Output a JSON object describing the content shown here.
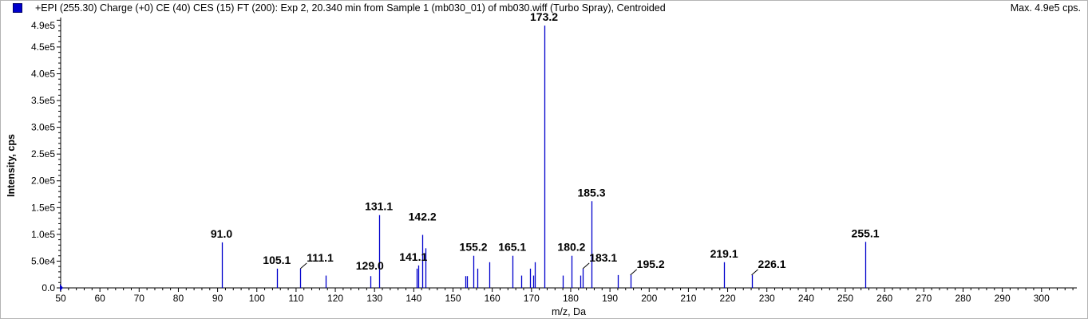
{
  "header": {
    "title": "+EPI (255.30) Charge (+0) CE (40) CES (15) FT (200): Exp 2, 20.340 min from Sample 1 (mb030_01) of mb030.wiff (Turbo Spray), Centroided",
    "max_label": "Max. 4.9e5 cps.",
    "series_color": "#0000cc"
  },
  "chart_data": {
    "type": "bar",
    "xlabel": "m/z, Da",
    "ylabel": "Intensity, cps",
    "xlim": [
      50,
      309
    ],
    "ylim": [
      0,
      500000
    ],
    "x_ticks": [
      50,
      60,
      70,
      80,
      90,
      100,
      110,
      120,
      130,
      140,
      150,
      160,
      170,
      180,
      190,
      200,
      210,
      220,
      230,
      240,
      250,
      260,
      270,
      280,
      290,
      300
    ],
    "y_ticks": [
      {
        "value": 0,
        "label": "0.0"
      },
      {
        "value": 50000,
        "label": "5.0e4"
      },
      {
        "value": 100000,
        "label": "1.0e5"
      },
      {
        "value": 150000,
        "label": "1.5e5"
      },
      {
        "value": 200000,
        "label": "2.0e5"
      },
      {
        "value": 250000,
        "label": "2.5e5"
      },
      {
        "value": 300000,
        "label": "3.0e5"
      },
      {
        "value": 350000,
        "label": "3.5e5"
      },
      {
        "value": 400000,
        "label": "4.0e5"
      },
      {
        "value": 450000,
        "label": "4.5e5"
      },
      {
        "value": 490000,
        "label": "4.9e5"
      }
    ],
    "peaks": [
      {
        "mz": 91.0,
        "intensity": 85000
      },
      {
        "mz": 105.1,
        "intensity": 36000
      },
      {
        "mz": 111.1,
        "intensity": 36000
      },
      {
        "mz": 117.5,
        "intensity": 23000
      },
      {
        "mz": 129.0,
        "intensity": 22000
      },
      {
        "mz": 131.1,
        "intensity": 136000
      },
      {
        "mz": 140.8,
        "intensity": 36000
      },
      {
        "mz": 141.1,
        "intensity": 42000
      },
      {
        "mz": 142.2,
        "intensity": 99000
      },
      {
        "mz": 142.9,
        "intensity": 74000
      },
      {
        "mz": 153.2,
        "intensity": 22000
      },
      {
        "mz": 153.6,
        "intensity": 22000
      },
      {
        "mz": 155.2,
        "intensity": 60000
      },
      {
        "mz": 156.2,
        "intensity": 36000
      },
      {
        "mz": 159.3,
        "intensity": 48000
      },
      {
        "mz": 165.1,
        "intensity": 60000
      },
      {
        "mz": 167.4,
        "intensity": 23000
      },
      {
        "mz": 169.6,
        "intensity": 36000
      },
      {
        "mz": 170.4,
        "intensity": 23000
      },
      {
        "mz": 170.9,
        "intensity": 48000
      },
      {
        "mz": 173.2,
        "intensity": 490000
      },
      {
        "mz": 178.0,
        "intensity": 23000
      },
      {
        "mz": 180.2,
        "intensity": 60000
      },
      {
        "mz": 182.4,
        "intensity": 23000
      },
      {
        "mz": 183.1,
        "intensity": 36000
      },
      {
        "mz": 185.3,
        "intensity": 162000
      },
      {
        "mz": 192.0,
        "intensity": 24000
      },
      {
        "mz": 195.2,
        "intensity": 24000
      },
      {
        "mz": 219.1,
        "intensity": 48000
      },
      {
        "mz": 226.1,
        "intensity": 24000
      },
      {
        "mz": 255.1,
        "intensity": 86000
      }
    ],
    "labels": [
      {
        "mz": 91.0,
        "text": "91.0"
      },
      {
        "mz": 105.1,
        "text": "105.1"
      },
      {
        "mz": 111.1,
        "text": "111.1"
      },
      {
        "mz": 129.0,
        "text": "129.0"
      },
      {
        "mz": 131.1,
        "text": "131.1"
      },
      {
        "mz": 141.1,
        "text": "141.1"
      },
      {
        "mz": 142.2,
        "text": "142.2"
      },
      {
        "mz": 155.2,
        "text": "155.2"
      },
      {
        "mz": 165.1,
        "text": "165.1"
      },
      {
        "mz": 173.2,
        "text": "173.2"
      },
      {
        "mz": 180.2,
        "text": "180.2"
      },
      {
        "mz": 183.1,
        "text": "183.1"
      },
      {
        "mz": 185.3,
        "text": "185.3"
      },
      {
        "mz": 195.2,
        "text": "195.2"
      },
      {
        "mz": 219.1,
        "text": "219.1"
      },
      {
        "mz": 226.1,
        "text": "226.1"
      },
      {
        "mz": 255.1,
        "text": "255.1"
      }
    ]
  }
}
